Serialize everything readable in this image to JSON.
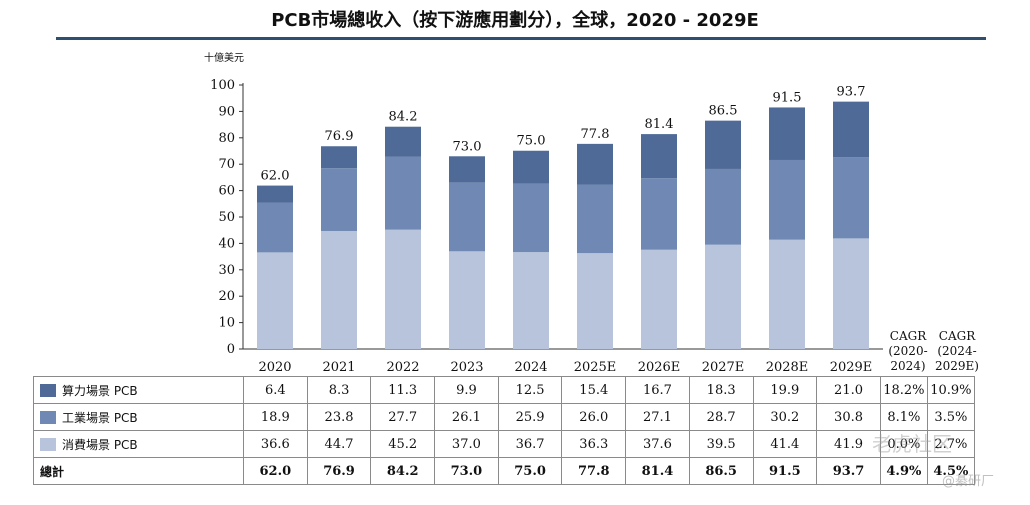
{
  "title": "PCB市場總收入（按下游應用劃分），全球，2020 - 2029E",
  "unit": "十億美元",
  "colors": {
    "computing": "#4f6a96",
    "industrial": "#6f89b4",
    "consumer": "#b7c4dc",
    "rule": "#2f4f6f"
  },
  "chart_data": {
    "type": "bar",
    "stacked": true,
    "categories": [
      "2020",
      "2021",
      "2022",
      "2023",
      "2024",
      "2025E",
      "2026E",
      "2027E",
      "2028E",
      "2029E"
    ],
    "series": [
      {
        "name": "消費場景 PCB",
        "values": [
          36.6,
          44.7,
          45.2,
          37.0,
          36.7,
          36.3,
          37.6,
          39.5,
          41.4,
          41.9
        ]
      },
      {
        "name": "工業場景 PCB",
        "values": [
          18.9,
          23.8,
          27.7,
          26.1,
          25.9,
          26.0,
          27.1,
          28.7,
          30.2,
          30.8
        ]
      },
      {
        "name": "算力場景 PCB",
        "values": [
          6.4,
          8.3,
          11.3,
          9.9,
          12.5,
          15.4,
          16.7,
          18.3,
          19.9,
          21.0
        ]
      }
    ],
    "totals": [
      "62.0",
      "76.9",
      "84.2",
      "73.0",
      "75.0",
      "77.8",
      "81.4",
      "86.5",
      "91.5",
      "93.7"
    ],
    "ylabel": "十億美元",
    "ylim": [
      0,
      100
    ],
    "yticks": [
      0,
      10,
      20,
      30,
      40,
      50,
      60,
      70,
      80,
      90,
      100
    ]
  },
  "cagr_headers": [
    {
      "line1": "CAGR",
      "line2": "(2020-",
      "line3": "2024)"
    },
    {
      "line1": "CAGR",
      "line2": "(2024-",
      "line3": "2029E)"
    }
  ],
  "table": {
    "rows": [
      {
        "label": "算力場景 PCB",
        "swatch": "computing",
        "values": [
          "6.4",
          "8.3",
          "11.3",
          "9.9",
          "12.5",
          "15.4",
          "16.7",
          "18.3",
          "19.9",
          "21.0"
        ],
        "cagr": [
          "18.2%",
          "10.9%"
        ]
      },
      {
        "label": "工業場景 PCB",
        "swatch": "industrial",
        "values": [
          "18.9",
          "23.8",
          "27.7",
          "26.1",
          "25.9",
          "26.0",
          "27.1",
          "28.7",
          "30.2",
          "30.8"
        ],
        "cagr": [
          "8.1%",
          "3.5%"
        ]
      },
      {
        "label": "消費場景 PCB",
        "swatch": "consumer",
        "values": [
          "36.6",
          "44.7",
          "45.2",
          "37.0",
          "36.7",
          "36.3",
          "37.6",
          "39.5",
          "41.4",
          "41.9"
        ],
        "cagr": [
          "0.0%",
          "2.7%"
        ]
      }
    ],
    "total": {
      "label": "總計",
      "values": [
        "62.0",
        "76.9",
        "84.2",
        "73.0",
        "75.0",
        "77.8",
        "81.4",
        "86.5",
        "91.5",
        "93.7"
      ],
      "cagr": [
        "4.9%",
        "4.5%"
      ]
    }
  },
  "watermark": {
    "main": "老虎社区",
    "sub": "@綦研厂"
  }
}
